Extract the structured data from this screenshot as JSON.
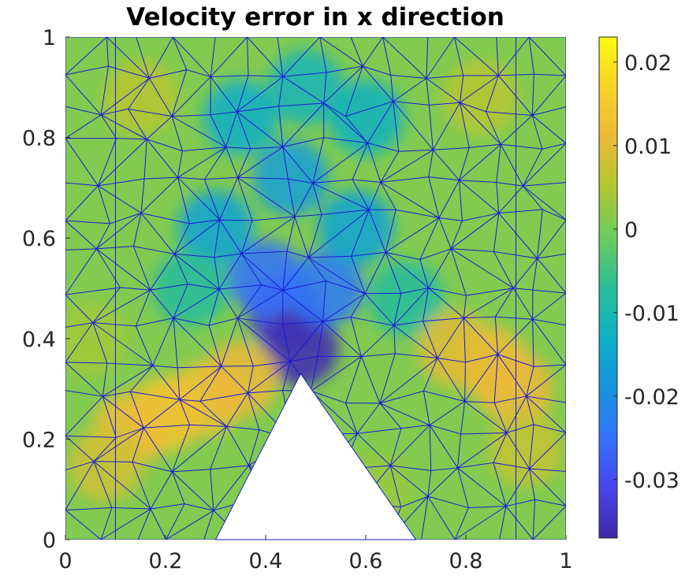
{
  "chart_data": {
    "type": "heatmap",
    "title": "Velocity error in x direction",
    "xlabel": "",
    "ylabel": "",
    "xlim": [
      0,
      1
    ],
    "ylim": [
      0,
      1
    ],
    "x_ticks": [
      "0",
      "0.2",
      "0.4",
      "0.6",
      "0.8",
      "1"
    ],
    "y_ticks": [
      "0",
      "0.2",
      "0.4",
      "0.6",
      "0.8",
      "1"
    ],
    "colorbar": {
      "colormap": "parula",
      "range": [
        -0.037,
        0.023
      ],
      "ticks": [
        "0.02",
        "0.01",
        "0",
        "-0.01",
        "-0.02",
        "-0.03"
      ],
      "tick_values": [
        0.02,
        0.01,
        0,
        -0.01,
        -0.02,
        -0.03
      ]
    },
    "mesh_line_color": "#1a1ad6",
    "obstacle": {
      "shape": "triangle",
      "vertices": [
        [
          0.3,
          0
        ],
        [
          0.7,
          0
        ],
        [
          0.47,
          0.33
        ]
      ],
      "fill": "#ffffff"
    },
    "error_hotspots": [
      {
        "x": 0.44,
        "y": 0.45,
        "value": -0.033
      },
      {
        "x": 0.47,
        "y": 0.38,
        "value": -0.036
      },
      {
        "x": 0.4,
        "y": 0.52,
        "value": -0.025
      },
      {
        "x": 0.52,
        "y": 0.5,
        "value": -0.024
      },
      {
        "x": 0.3,
        "y": 0.62,
        "value": -0.016
      },
      {
        "x": 0.58,
        "y": 0.62,
        "value": -0.016
      },
      {
        "x": 0.45,
        "y": 0.72,
        "value": -0.017
      },
      {
        "x": 0.35,
        "y": 0.84,
        "value": -0.013
      },
      {
        "x": 0.6,
        "y": 0.84,
        "value": -0.012
      },
      {
        "x": 0.48,
        "y": 0.9,
        "value": -0.011
      },
      {
        "x": 0.25,
        "y": 0.5,
        "value": -0.008
      },
      {
        "x": 0.68,
        "y": 0.48,
        "value": -0.008
      },
      {
        "x": 0.2,
        "y": 0.25,
        "value": 0.014
      },
      {
        "x": 0.13,
        "y": 0.22,
        "value": 0.012
      },
      {
        "x": 0.28,
        "y": 0.28,
        "value": 0.013
      },
      {
        "x": 0.35,
        "y": 0.32,
        "value": 0.011
      },
      {
        "x": 0.08,
        "y": 0.15,
        "value": 0.008
      },
      {
        "x": 0.85,
        "y": 0.35,
        "value": 0.012
      },
      {
        "x": 0.9,
        "y": 0.3,
        "value": 0.011
      },
      {
        "x": 0.78,
        "y": 0.38,
        "value": 0.01
      },
      {
        "x": 0.92,
        "y": 0.18,
        "value": 0.007
      },
      {
        "x": 0.15,
        "y": 0.88,
        "value": 0.006
      },
      {
        "x": 0.83,
        "y": 0.88,
        "value": 0.006
      },
      {
        "x": 0.05,
        "y": 0.4,
        "value": 0.004
      },
      {
        "x": 0.62,
        "y": 0.1,
        "value": 0.003
      }
    ]
  }
}
